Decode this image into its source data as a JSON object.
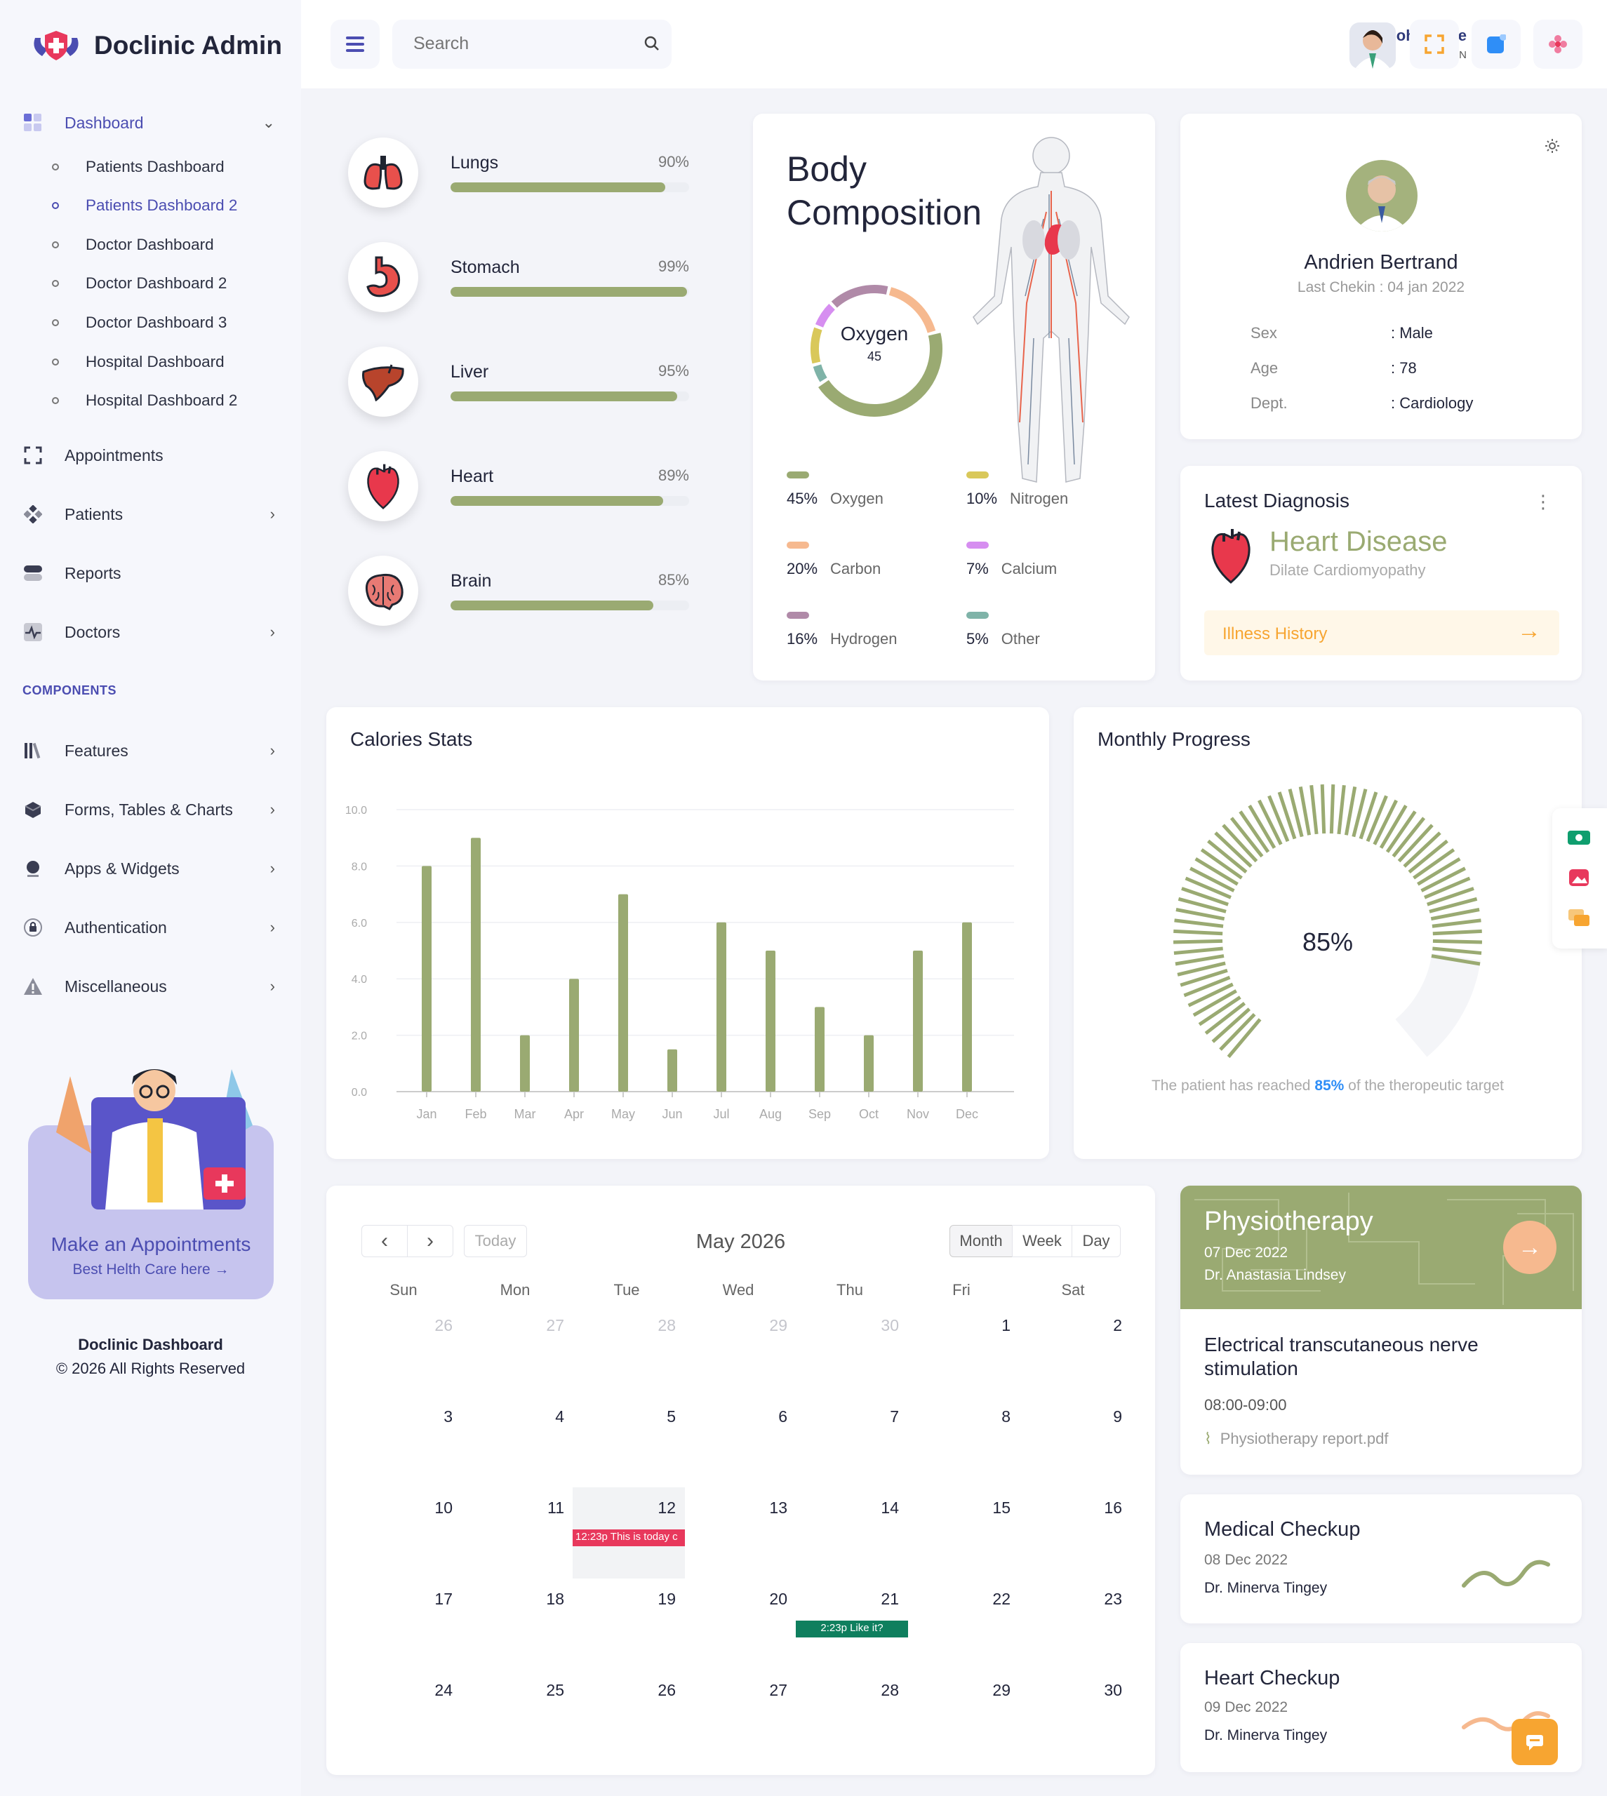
{
  "brand": "Doclinic Admin",
  "sidebar": {
    "dashboard_label": "Dashboard",
    "sub_items": [
      "Patients Dashboard",
      "Patients Dashboard 2",
      "Doctor Dashboard",
      "Doctor Dashboard 2",
      "Doctor Dashboard 3",
      "Hospital Dashboard",
      "Hospital Dashboard 2"
    ],
    "appointments": "Appointments",
    "patients": "Patients",
    "reports": "Reports",
    "doctors": "Doctors",
    "components_label": "COMPONENTS",
    "features": "Features",
    "forms": "Forms, Tables & Charts",
    "apps": "Apps & Widgets",
    "auth": "Authentication",
    "misc": "Miscellaneous",
    "promo_title": "Make an Appointments",
    "promo_sub": "Best Helth Care here →",
    "footer_title": "Doclinic Dashboard",
    "footer_copy": "© 2026 All Rights Reserved"
  },
  "header": {
    "search_placeholder": "Search",
    "user_name": "Johen Doe",
    "user_role": "ADMIN"
  },
  "organs": [
    {
      "name": "Lungs",
      "pct_label": "90%",
      "value": 90
    },
    {
      "name": "Stomach",
      "pct_label": "99%",
      "value": 99
    },
    {
      "name": "Liver",
      "pct_label": "95%",
      "value": 95
    },
    {
      "name": "Heart",
      "pct_label": "89%",
      "value": 89
    },
    {
      "name": "Brain",
      "pct_label": "85%",
      "value": 85
    }
  ],
  "body_comp": {
    "title_line1": "Body",
    "title_line2": "Composition",
    "center_label": "Oxygen",
    "center_value": "45",
    "legend": [
      {
        "pct": "45%",
        "label": "Oxygen",
        "color": "#9aaa72"
      },
      {
        "pct": "10%",
        "label": "Nitrogen",
        "color": "#d9c85a"
      },
      {
        "pct": "20%",
        "label": "Carbon",
        "color": "#f6b98f"
      },
      {
        "pct": "7%",
        "label": "Calcium",
        "color": "#d68ef0"
      },
      {
        "pct": "16%",
        "label": "Hydrogen",
        "color": "#b08aa8"
      },
      {
        "pct": "5%",
        "label": "Other",
        "color": "#7fb3a8"
      }
    ]
  },
  "patient": {
    "name": "Andrien Bertrand",
    "last_checkin": "Last Chekin : 04 jan 2022",
    "rows": [
      {
        "k": "Sex",
        "v": ": Male"
      },
      {
        "k": "Age",
        "v": ": 78"
      },
      {
        "k": "Dept.",
        "v": ": Cardiology"
      }
    ]
  },
  "diagnosis": {
    "title": "Latest Diagnosis",
    "disease": "Heart Disease",
    "sub": "Dilate Cardiomyopathy",
    "history_label": "Illness History"
  },
  "calories": {
    "title": "Calories Stats"
  },
  "chart_data": {
    "type": "bar",
    "categories": [
      "Jan",
      "Feb",
      "Mar",
      "Apr",
      "May",
      "Jun",
      "Jul",
      "Aug",
      "Sep",
      "Oct",
      "Nov",
      "Dec"
    ],
    "values": [
      8,
      9,
      2,
      4,
      7,
      1.5,
      6,
      5,
      3,
      2,
      5,
      6
    ],
    "yticks": [
      "0.0",
      "2.0",
      "4.0",
      "6.0",
      "8.0",
      "10.0"
    ],
    "ylim": [
      0,
      10
    ],
    "color": "#9aaa72",
    "grid": true
  },
  "monthly": {
    "title": "Monthly Progress",
    "value": 85,
    "value_label": "85%",
    "caption_pre": "The patient has reached ",
    "caption_pct": "85%",
    "caption_post": " of the theropeutic target"
  },
  "calendar": {
    "today_label": "Today",
    "month_title": "May 2026",
    "views": [
      "Month",
      "Week",
      "Day"
    ],
    "dow": [
      "Sun",
      "Mon",
      "Tue",
      "Wed",
      "Thu",
      "Fri",
      "Sat"
    ],
    "weeks": [
      [
        "26",
        "27",
        "28",
        "29",
        "30",
        "1",
        "2"
      ],
      [
        "3",
        "4",
        "5",
        "6",
        "7",
        "8",
        "9"
      ],
      [
        "10",
        "11",
        "12",
        "13",
        "14",
        "15",
        "16"
      ],
      [
        "17",
        "18",
        "19",
        "20",
        "21",
        "22",
        "23"
      ],
      [
        "24",
        "25",
        "26",
        "27",
        "28",
        "29",
        "30"
      ]
    ],
    "event1": "12:23p This is today c",
    "event2": "2:23p Like it?"
  },
  "physio": {
    "title": "Physiotherapy",
    "date": "07 Dec 2022",
    "doctor": "Dr. Anastasia Lindsey",
    "desc": "Electrical transcutaneous nerve stimulation",
    "time": "08:00-09:00",
    "file": "Physiotherapy report.pdf"
  },
  "checkup1": {
    "title": "Medical Checkup",
    "date": "08 Dec 2022",
    "doctor": "Dr. Minerva Tingey"
  },
  "checkup2": {
    "title": "Heart Checkup",
    "date": "09 Dec 2022",
    "doctor": "Dr. Minerva Tingey"
  },
  "colors": {
    "accent": "#4b4db1",
    "olive": "#9aaa72",
    "orange": "#f7a531",
    "red": "#e8385c"
  }
}
